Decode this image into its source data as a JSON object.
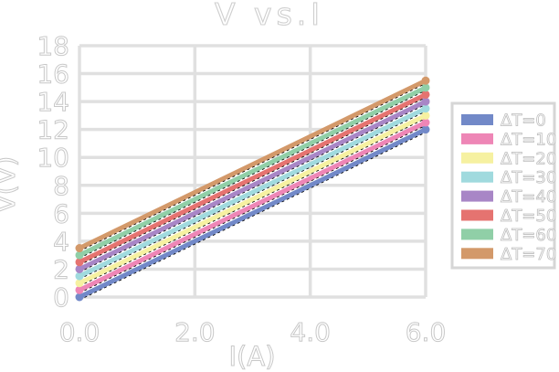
{
  "page": {
    "background": "#ffffff"
  },
  "chart_data": {
    "type": "line",
    "title": "V vs.I",
    "xlabel": "I(A)",
    "ylabel": "V(V)",
    "xlim": [
      0,
      6
    ],
    "ylim": [
      0,
      18
    ],
    "x": [
      0,
      6
    ],
    "xticks": {
      "values": [
        0,
        2,
        4,
        6
      ],
      "labels": [
        "0.0",
        "2.0",
        "4.0",
        "6.0"
      ]
    },
    "yticks": {
      "values": [
        0,
        2,
        4,
        6,
        8,
        10,
        12,
        14,
        16,
        18
      ],
      "labels": [
        "0",
        "2",
        "4",
        "6",
        "8",
        "10",
        "12",
        "14",
        "16",
        "18"
      ]
    },
    "grid": true,
    "legend_position": "right",
    "series": [
      {
        "name": "ΔT=0",
        "color": "#7289c8",
        "values": [
          0,
          12
        ]
      },
      {
        "name": "ΔT=10",
        "color": "#ee86b6",
        "values": [
          0.5,
          12.5
        ]
      },
      {
        "name": "ΔT=20",
        "color": "#f6f1a1",
        "values": [
          1,
          13
        ]
      },
      {
        "name": "ΔT=30",
        "color": "#a0dade",
        "values": [
          1.5,
          13.5
        ]
      },
      {
        "name": "ΔT=40",
        "color": "#a886c6",
        "values": [
          2,
          14
        ]
      },
      {
        "name": "ΔT=50",
        "color": "#e57370",
        "values": [
          2.5,
          14.5
        ]
      },
      {
        "name": "ΔT=60",
        "color": "#90cfa7",
        "values": [
          3,
          15
        ]
      },
      {
        "name": "ΔT=70",
        "color": "#d3996a",
        "values": [
          3.5,
          15.5
        ]
      }
    ],
    "fit_line": {
      "visible": true,
      "color": "#000000",
      "style": "dashed"
    },
    "styles": {
      "grid_color": "#e0e0e0",
      "text_outline_color": "#c8c8c8",
      "legend_border_color": "#d6d6d6"
    }
  }
}
